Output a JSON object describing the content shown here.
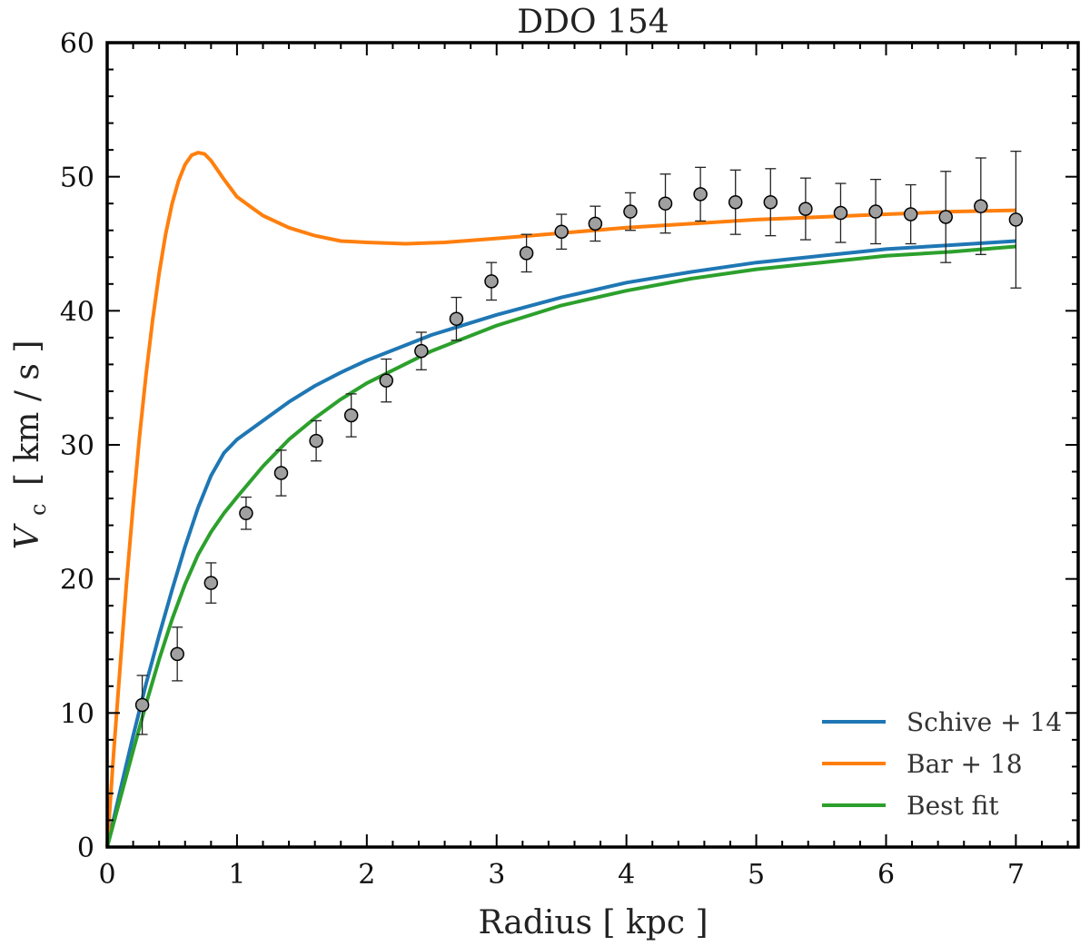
{
  "chart_data": {
    "type": "line",
    "title": "DDO 154",
    "xlabel": "Radius [ kpc ]",
    "ylabel": "V",
    "ylabel_sub": "c",
    "ylabel_units": "[ km / s ]",
    "xlim": [
      0,
      7.48
    ],
    "ylim": [
      0,
      60
    ],
    "xticks": [
      0,
      1,
      2,
      3,
      4,
      5,
      6,
      7
    ],
    "yticks": [
      0,
      10,
      20,
      30,
      40,
      50,
      60
    ],
    "legend_position": "bottom-right",
    "grid": false,
    "observed": {
      "marker_color": "#a0a0a0",
      "x": [
        0.27,
        0.54,
        0.8,
        1.07,
        1.34,
        1.61,
        1.88,
        2.15,
        2.42,
        2.69,
        2.96,
        3.23,
        3.5,
        3.76,
        4.03,
        4.3,
        4.57,
        4.84,
        5.11,
        5.38,
        5.65,
        5.92,
        6.19,
        6.46,
        6.73,
        7.0
      ],
      "y": [
        10.6,
        14.4,
        19.7,
        24.9,
        27.9,
        30.3,
        32.2,
        34.8,
        37.0,
        39.4,
        42.2,
        44.3,
        45.9,
        46.5,
        47.4,
        48.0,
        48.7,
        48.1,
        48.1,
        47.6,
        47.3,
        47.4,
        47.2,
        47.0,
        47.8,
        46.8
      ],
      "err": [
        2.2,
        2.0,
        1.5,
        1.2,
        1.7,
        1.5,
        1.6,
        1.6,
        1.4,
        1.6,
        1.4,
        1.4,
        1.3,
        1.3,
        1.4,
        2.2,
        2.0,
        2.4,
        2.5,
        2.3,
        2.2,
        2.4,
        2.2,
        3.4,
        3.6,
        5.1
      ]
    },
    "series": [
      {
        "name": "Schive + 14",
        "color": "#1f77b4",
        "x": [
          0,
          0.1,
          0.2,
          0.3,
          0.4,
          0.5,
          0.6,
          0.7,
          0.8,
          0.9,
          1.0,
          1.2,
          1.4,
          1.6,
          1.8,
          2.0,
          2.5,
          3.0,
          3.5,
          4.0,
          4.5,
          5.0,
          5.5,
          6.0,
          6.5,
          7.0
        ],
        "values": [
          0,
          4.2,
          8.3,
          12.2,
          15.8,
          19.2,
          22.4,
          25.3,
          27.7,
          29.4,
          30.4,
          31.8,
          33.2,
          34.4,
          35.4,
          36.3,
          38.2,
          39.7,
          41.0,
          42.1,
          42.9,
          43.6,
          44.1,
          44.6,
          44.9,
          45.2
        ]
      },
      {
        "name": "Bar + 18",
        "color": "#ff7f0e",
        "x": [
          0,
          0.05,
          0.1,
          0.15,
          0.2,
          0.25,
          0.3,
          0.35,
          0.4,
          0.45,
          0.5,
          0.55,
          0.6,
          0.65,
          0.7,
          0.75,
          0.8,
          0.85,
          0.9,
          1.0,
          1.1,
          1.2,
          1.4,
          1.6,
          1.8,
          2.0,
          2.3,
          2.6,
          3.0,
          3.5,
          4.0,
          4.5,
          5.0,
          5.5,
          6.0,
          6.5,
          7.0
        ],
        "values": [
          0,
          7.0,
          13.5,
          19.8,
          25.5,
          30.7,
          35.3,
          39.3,
          42.8,
          45.7,
          48.0,
          49.7,
          50.9,
          51.6,
          51.8,
          51.7,
          51.2,
          50.5,
          49.8,
          48.5,
          47.8,
          47.1,
          46.2,
          45.6,
          45.2,
          45.1,
          45.0,
          45.1,
          45.4,
          45.8,
          46.2,
          46.5,
          46.8,
          47.0,
          47.2,
          47.4,
          47.5
        ]
      },
      {
        "name": "Best fit",
        "color": "#2ca02c",
        "x": [
          0,
          0.1,
          0.2,
          0.3,
          0.4,
          0.5,
          0.6,
          0.7,
          0.8,
          0.9,
          1.0,
          1.2,
          1.4,
          1.6,
          1.8,
          2.0,
          2.5,
          3.0,
          3.5,
          4.0,
          4.5,
          5.0,
          5.5,
          6.0,
          6.5,
          7.0
        ],
        "values": [
          0,
          3.6,
          7.2,
          10.7,
          14.0,
          17.0,
          19.6,
          21.8,
          23.5,
          24.9,
          26.1,
          28.4,
          30.4,
          32.0,
          33.4,
          34.6,
          37.0,
          38.9,
          40.4,
          41.5,
          42.4,
          43.1,
          43.6,
          44.1,
          44.4,
          44.8
        ]
      }
    ]
  }
}
